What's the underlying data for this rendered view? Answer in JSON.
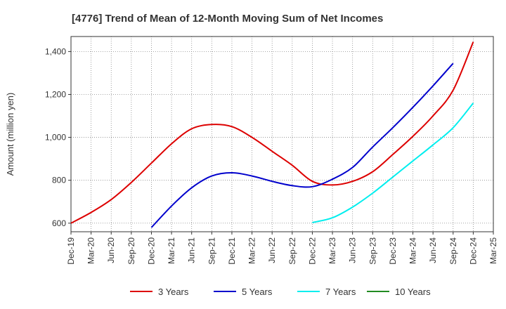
{
  "chart_data": {
    "type": "line",
    "title": "[4776]  Trend of Mean of 12-Month Moving Sum of Net Incomes",
    "ylabel": "Amount (million yen)",
    "xlabel": "",
    "ylim": [
      560,
      1470
    ],
    "yticks": [
      600,
      800,
      1000,
      1200,
      1400
    ],
    "ytick_labels": [
      "600",
      "800",
      "1,000",
      "1,200",
      "1,400"
    ],
    "x_tick_labels": [
      "Dec-19",
      "Mar-20",
      "Jun-20",
      "Sep-20",
      "Dec-20",
      "Mar-21",
      "Jun-21",
      "Sep-21",
      "Dec-21",
      "Mar-22",
      "Jun-22",
      "Sep-22",
      "Dec-22",
      "Mar-23",
      "Jun-23",
      "Sep-23",
      "Dec-23",
      "Mar-24",
      "Jun-24",
      "Sep-24",
      "Dec-24",
      "Mar-25"
    ],
    "grid": true,
    "legend_position": "bottom",
    "series": [
      {
        "name": "3 Years",
        "color": "#dd0000",
        "start_index": 0,
        "values": [
          600,
          650,
          710,
          790,
          880,
          970,
          1040,
          1060,
          1050,
          1000,
          935,
          870,
          795,
          778,
          795,
          840,
          920,
          1005,
          1100,
          1220,
          1445
        ]
      },
      {
        "name": "5 Years",
        "color": "#0000cc",
        "start_index": 4,
        "values": [
          580,
          680,
          765,
          820,
          835,
          820,
          795,
          775,
          770,
          805,
          860,
          955,
          1045,
          1140,
          1240,
          1345
        ]
      },
      {
        "name": "7 Years",
        "color": "#00eeee",
        "start_index": 12,
        "values": [
          603,
          625,
          675,
          740,
          815,
          890,
          965,
          1045,
          1160
        ]
      },
      {
        "name": "10 Years",
        "color": "#228b22",
        "start_index": 0,
        "values": []
      }
    ]
  }
}
